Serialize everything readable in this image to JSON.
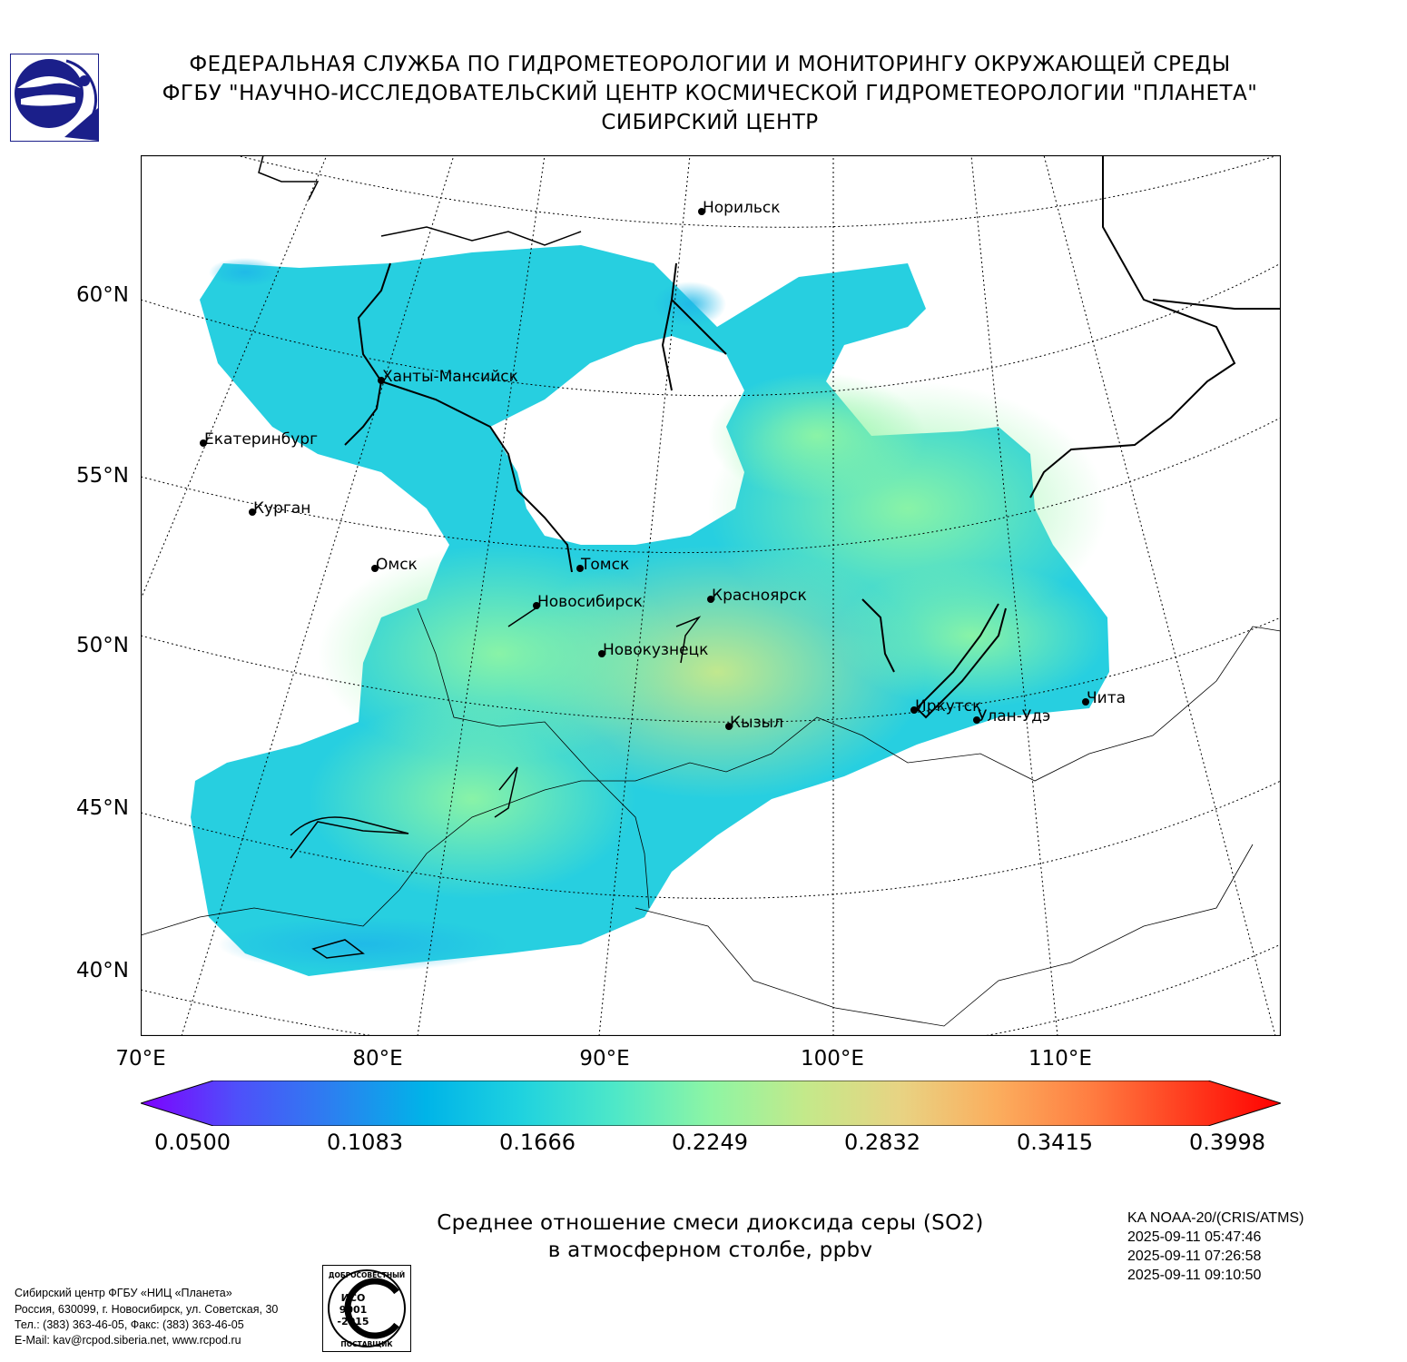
{
  "header": {
    "line1": "ФЕДЕРАЛЬНАЯ СЛУЖБА ПО ГИДРОМЕТЕОРОЛОГИИ И МОНИТОРИНГУ ОКРУЖАЮЩЕЙ СРЕДЫ",
    "line2": "ФГБУ \"НАУЧНО-ИССЛЕДОВАТЕЛЬСКИЙ ЦЕНТР КОСМИЧЕСКОЙ ГИДРОМЕТЕОРОЛОГИИ \"ПЛАНЕТА\"",
    "line3": "СИБИРСКИЙ ЦЕНТР"
  },
  "map": {
    "lat_labels": [
      "60°N",
      "55°N",
      "50°N",
      "45°N",
      "40°N"
    ],
    "lon_labels": [
      "70°E",
      "80°E",
      "90°E",
      "100°E",
      "110°E"
    ],
    "cities": [
      "Норильск",
      "Ханты-Мансийск",
      "Екатеринбург",
      "Курган",
      "Омск",
      "Томск",
      "Новосибирск",
      "Красноярск",
      "Новокузнецк",
      "Кызыл",
      "Иркутск",
      "Улан-Удэ",
      "Чита"
    ]
  },
  "colorbar": {
    "ticks": [
      "0.0500",
      "0.1083",
      "0.1666",
      "0.2249",
      "0.2832",
      "0.3415",
      "0.3998"
    ],
    "min": 0.05,
    "max": 0.3998,
    "colors": [
      "#7f00ff",
      "#4f4ffa",
      "#2c7ff0",
      "#00b4e8",
      "#1fd2df",
      "#4ee8c8",
      "#8ef5a4",
      "#c4e98a",
      "#e8d383",
      "#fbae5e",
      "#ff7d41",
      "#ff3d1f",
      "#ff0000"
    ]
  },
  "caption": {
    "line1": "Среднее отношение смеси диоксида серы (SO2)",
    "line2": "в атмосферном столбе, ppbv"
  },
  "satellite": {
    "name": "KA NOAA-20/(CRIS/ATMS)",
    "times": [
      "2025-09-11 05:47:46",
      "2025-09-11 07:26:58",
      "2025-09-11 09:10:50"
    ]
  },
  "footer": {
    "lines": [
      "Сибирский центр ФГБУ «НИЦ «Планета»",
      "Россия, 630099, г. Новосибирск, ул. Советская, 30",
      "Тел.: (383) 363-46-05, Факс: (383) 363-46-05",
      "E-Mail: kav@rcpod.siberia.net, www.rcpod.ru"
    ]
  },
  "iso_stamp": {
    "top": "ДОБРОСОВЕСТНЫЙ",
    "line1": "ИСО",
    "line2": "9001",
    "line3": "-2015",
    "bottom": "ПОСТАВЩИК"
  }
}
